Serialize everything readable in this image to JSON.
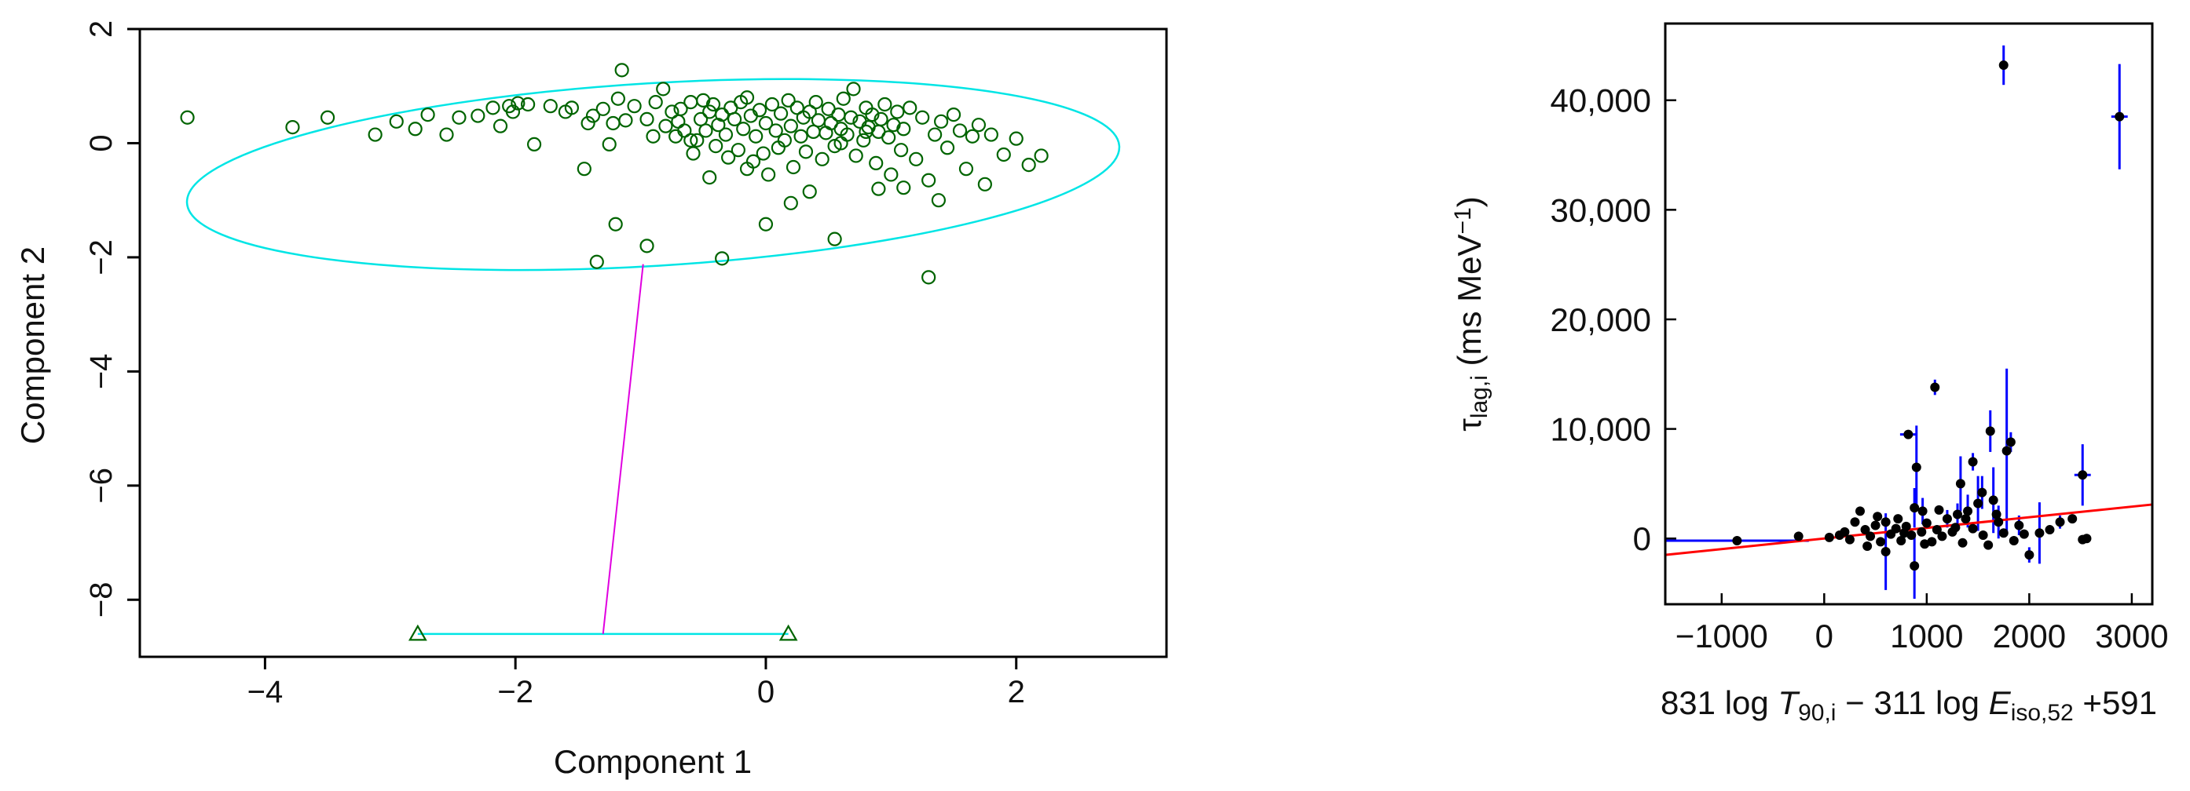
{
  "chart_data": [
    {
      "type": "scatter",
      "title": "",
      "xlabel": "Component 1",
      "ylabel": "Component 2",
      "xlim": [
        -5.0,
        3.2
      ],
      "ylim": [
        -9.0,
        2.0
      ],
      "xticks": [
        -4,
        -2,
        0,
        2
      ],
      "yticks": [
        -8,
        -6,
        -4,
        -2,
        0,
        2
      ],
      "xtick_labels": [
        "−4",
        "−2",
        "0",
        "2"
      ],
      "ytick_labels": [
        "−8",
        "−6",
        "−4",
        "−2",
        "0",
        "2"
      ],
      "grid": false,
      "colors": {
        "points": "#006400",
        "ellipse": "#00e5e5",
        "connector": "#e000e0"
      },
      "points": [
        [
          -4.62,
          0.45
        ],
        [
          -3.78,
          0.28
        ],
        [
          -3.5,
          0.45
        ],
        [
          -3.12,
          0.15
        ],
        [
          -2.95,
          0.38
        ],
        [
          -2.8,
          0.25
        ],
        [
          -2.7,
          0.5
        ],
        [
          -2.55,
          0.15
        ],
        [
          -2.45,
          0.45
        ],
        [
          -2.3,
          0.48
        ],
        [
          -2.18,
          0.62
        ],
        [
          -2.12,
          0.3
        ],
        [
          -2.05,
          0.65
        ],
        [
          -2.02,
          0.55
        ],
        [
          -1.98,
          0.7
        ],
        [
          -1.9,
          0.68
        ],
        [
          -1.85,
          -0.02
        ],
        [
          -1.72,
          0.65
        ],
        [
          -1.6,
          0.55
        ],
        [
          -1.55,
          0.62
        ],
        [
          -1.45,
          -0.45
        ],
        [
          -1.42,
          0.35
        ],
        [
          -1.38,
          0.48
        ],
        [
          -1.3,
          0.6
        ],
        [
          -1.25,
          -0.02
        ],
        [
          -1.22,
          0.35
        ],
        [
          -1.18,
          0.78
        ],
        [
          -1.15,
          1.28
        ],
        [
          -1.12,
          0.4
        ],
        [
          -1.05,
          0.65
        ],
        [
          -0.95,
          0.42
        ],
        [
          -0.88,
          0.72
        ],
        [
          -0.82,
          0.95
        ],
        [
          -0.8,
          0.3
        ],
        [
          -0.75,
          0.55
        ],
        [
          -0.72,
          0.12
        ],
        [
          -0.7,
          0.38
        ],
        [
          -0.68,
          0.6
        ],
        [
          -0.65,
          0.22
        ],
        [
          -0.6,
          0.72
        ],
        [
          -0.58,
          -0.18
        ],
        [
          -0.55,
          0.05
        ],
        [
          -0.52,
          0.42
        ],
        [
          -0.5,
          0.75
        ],
        [
          -0.48,
          0.22
        ],
        [
          -0.45,
          0.55
        ],
        [
          -0.42,
          0.68
        ],
        [
          -0.4,
          -0.05
        ],
        [
          -0.38,
          0.32
        ],
        [
          -0.35,
          0.5
        ],
        [
          -0.32,
          0.15
        ],
        [
          -0.3,
          -0.25
        ],
        [
          -0.28,
          0.62
        ],
        [
          -0.25,
          0.42
        ],
        [
          -0.22,
          -0.12
        ],
        [
          -0.2,
          0.72
        ],
        [
          -0.18,
          0.25
        ],
        [
          -0.15,
          0.8
        ],
        [
          -0.12,
          0.48
        ],
        [
          -0.1,
          -0.32
        ],
        [
          -0.08,
          0.12
        ],
        [
          -0.05,
          0.58
        ],
        [
          -0.02,
          -0.18
        ],
        [
          0.0,
          0.35
        ],
        [
          0.02,
          -0.55
        ],
        [
          0.05,
          0.68
        ],
        [
          0.08,
          0.22
        ],
        [
          0.1,
          -0.08
        ],
        [
          0.12,
          0.52
        ],
        [
          0.15,
          0.05
        ],
        [
          0.18,
          0.75
        ],
        [
          0.2,
          0.3
        ],
        [
          0.22,
          -0.42
        ],
        [
          0.25,
          0.62
        ],
        [
          0.28,
          0.12
        ],
        [
          0.3,
          0.45
        ],
        [
          0.32,
          -0.15
        ],
        [
          0.35,
          0.55
        ],
        [
          0.38,
          0.2
        ],
        [
          0.4,
          0.72
        ],
        [
          0.42,
          0.4
        ],
        [
          0.45,
          -0.28
        ],
        [
          0.48,
          0.18
        ],
        [
          0.5,
          0.6
        ],
        [
          0.52,
          0.35
        ],
        [
          0.55,
          -0.05
        ],
        [
          0.58,
          0.5
        ],
        [
          0.6,
          0.25
        ],
        [
          0.62,
          0.78
        ],
        [
          0.65,
          0.15
        ],
        [
          0.68,
          0.45
        ],
        [
          0.7,
          0.95
        ],
        [
          0.72,
          -0.22
        ],
        [
          0.75,
          0.38
        ],
        [
          0.78,
          0.05
        ],
        [
          0.8,
          0.62
        ],
        [
          0.82,
          0.28
        ],
        [
          0.85,
          0.5
        ],
        [
          0.88,
          -0.35
        ],
        [
          0.9,
          0.2
        ],
        [
          0.92,
          0.42
        ],
        [
          0.95,
          0.68
        ],
        [
          0.98,
          0.1
        ],
        [
          1.0,
          -0.55
        ],
        [
          1.02,
          0.32
        ],
        [
          1.05,
          0.55
        ],
        [
          1.08,
          -0.12
        ],
        [
          1.1,
          0.25
        ],
        [
          1.15,
          0.62
        ],
        [
          1.2,
          -0.28
        ],
        [
          1.25,
          0.45
        ],
        [
          1.3,
          -0.65
        ],
        [
          1.35,
          0.15
        ],
        [
          1.4,
          0.38
        ],
        [
          1.45,
          -0.08
        ],
        [
          1.5,
          0.5
        ],
        [
          1.55,
          0.22
        ],
        [
          1.6,
          -0.45
        ],
        [
          1.65,
          0.12
        ],
        [
          1.7,
          0.32
        ],
        [
          1.75,
          -0.72
        ],
        [
          1.8,
          0.15
        ],
        [
          1.9,
          -0.2
        ],
        [
          2.0,
          0.08
        ],
        [
          2.1,
          -0.38
        ],
        [
          2.2,
          -0.22
        ],
        [
          -1.35,
          -2.08
        ],
        [
          -1.2,
          -1.42
        ],
        [
          -0.95,
          -1.8
        ],
        [
          -0.35,
          -2.02
        ],
        [
          0.55,
          -1.68
        ],
        [
          1.3,
          -2.35
        ],
        [
          0.0,
          -1.42
        ],
        [
          0.8,
          0.2
        ],
        [
          -0.6,
          0.05
        ],
        [
          0.35,
          -0.85
        ],
        [
          -0.15,
          -0.45
        ],
        [
          0.9,
          -0.8
        ],
        [
          1.1,
          -0.78
        ],
        [
          0.6,
          0.0
        ],
        [
          -0.9,
          0.12
        ],
        [
          1.38,
          -1.0
        ],
        [
          -0.45,
          -0.6
        ],
        [
          0.2,
          -1.05
        ]
      ],
      "extra_points": [
        [
          -2.78,
          -8.6
        ],
        [
          0.18,
          -8.6
        ]
      ],
      "ellipse": {
        "cx": -0.9,
        "cy": -0.55,
        "rx": 3.73,
        "ry": 1.6,
        "rotate_deg": -3.5
      },
      "bottom_segment": [
        [
          -2.78,
          -8.6
        ],
        [
          0.18,
          -8.6
        ]
      ],
      "connector": [
        [
          -0.98,
          -2.12
        ],
        [
          -1.3,
          -8.6
        ]
      ]
    },
    {
      "type": "scatter",
      "title": "",
      "xlabel_parts": [
        "831 log ",
        "T",
        "90,i",
        " − 311 log ",
        "E",
        "iso,52",
        " +591"
      ],
      "ylabel_parts": [
        "τ",
        "lag,i",
        " (ms MeV",
        "−1",
        ")"
      ],
      "xlim": [
        -1550,
        3200
      ],
      "ylim": [
        -6000,
        47000
      ],
      "xticks": [
        -1000,
        0,
        1000,
        2000,
        3000
      ],
      "yticks": [
        0,
        10000,
        20000,
        30000,
        40000
      ],
      "xtick_labels": [
        "−1000",
        "0",
        "1000",
        "2000",
        "3000"
      ],
      "ytick_labels": [
        "0",
        "10,000",
        "20,000",
        "30,000",
        "40,000"
      ],
      "grid": false,
      "colors": {
        "points": "#000000",
        "errorbars": "#0000ff",
        "fit": "#ff0000"
      },
      "fit_line": {
        "x": [
          -1550,
          3200
        ],
        "y": [
          -1500,
          3100
        ]
      },
      "points": [
        {
          "x": -850,
          "y": -200,
          "xerr": 700,
          "yerr": 0
        },
        {
          "x": 1750,
          "y": 43200,
          "xerr": 0,
          "yerr": 1800
        },
        {
          "x": 2880,
          "y": 38500,
          "xerr": 80,
          "yerr": 4800
        },
        {
          "x": 1080,
          "y": 13800,
          "xerr": 0,
          "yerr": 700
        },
        {
          "x": 820,
          "y": 9500,
          "xerr": 80,
          "yerr": 0
        },
        {
          "x": 900,
          "y": 6500,
          "xerr": 0,
          "yerr": 3800
        },
        {
          "x": 1620,
          "y": 9800,
          "xerr": 0,
          "yerr": 1900
        },
        {
          "x": 1820,
          "y": 8800,
          "xerr": 0,
          "yerr": 900
        },
        {
          "x": 1780,
          "y": 8000,
          "xerr": 0,
          "yerr": 7500
        },
        {
          "x": 2520,
          "y": 5800,
          "xerr": 80,
          "yerr": 2800
        },
        {
          "x": 1450,
          "y": 7000,
          "xerr": 0,
          "yerr": 800
        },
        {
          "x": 1330,
          "y": 5000,
          "xerr": 0,
          "yerr": 2500
        },
        {
          "x": 1540,
          "y": 4200,
          "xerr": 0,
          "yerr": 1500
        },
        {
          "x": 1650,
          "y": 3500,
          "xerr": 0,
          "yerr": 3000
        },
        {
          "x": 880,
          "y": 2800,
          "xerr": 0,
          "yerr": 1800
        },
        {
          "x": 960,
          "y": 2500,
          "xerr": 0,
          "yerr": 1200
        },
        {
          "x": 1200,
          "y": 1800,
          "xerr": 0,
          "yerr": 800
        },
        {
          "x": 1300,
          "y": 2200,
          "xerr": 0,
          "yerr": 1000
        },
        {
          "x": 1400,
          "y": 2500,
          "xerr": 0,
          "yerr": 1500
        },
        {
          "x": 1500,
          "y": 3200,
          "xerr": 0,
          "yerr": 2500
        },
        {
          "x": 1700,
          "y": 1500,
          "xerr": 0,
          "yerr": 1500
        },
        {
          "x": 1900,
          "y": 1200,
          "xerr": 0,
          "yerr": 900
        },
        {
          "x": 2000,
          "y": -1500,
          "xerr": 0,
          "yerr": 700
        },
        {
          "x": 2100,
          "y": 500,
          "xerr": 0,
          "yerr": 2800
        },
        {
          "x": 2300,
          "y": 1500,
          "xerr": 0,
          "yerr": 600
        },
        {
          "x": 2420,
          "y": 1800,
          "xerr": 0,
          "yerr": 0
        },
        {
          "x": 2520,
          "y": -100,
          "xerr": 0,
          "yerr": 0
        },
        {
          "x": 2560,
          "y": 0,
          "xerr": 0,
          "yerr": 0
        },
        {
          "x": 600,
          "y": -1200,
          "xerr": 0,
          "yerr": 3500
        },
        {
          "x": 880,
          "y": -2500,
          "xerr": 0,
          "yerr": 3000
        },
        {
          "x": -250,
          "y": 200,
          "xerr": 0,
          "yerr": 0
        },
        {
          "x": 50,
          "y": 100,
          "xerr": 0,
          "yerr": 0
        },
        {
          "x": 150,
          "y": 300,
          "xerr": 0,
          "yerr": 0
        },
        {
          "x": 250,
          "y": -100,
          "xerr": 0,
          "yerr": 0
        },
        {
          "x": 300,
          "y": 1500,
          "xerr": 0,
          "yerr": 0
        },
        {
          "x": 350,
          "y": 2500,
          "xerr": 0,
          "yerr": 0
        },
        {
          "x": 400,
          "y": 800,
          "xerr": 0,
          "yerr": 0
        },
        {
          "x": 450,
          "y": 200,
          "xerr": 0,
          "yerr": 0
        },
        {
          "x": 500,
          "y": 1200,
          "xerr": 0,
          "yerr": 0
        },
        {
          "x": 550,
          "y": -300,
          "xerr": 0,
          "yerr": 0
        },
        {
          "x": 600,
          "y": 1500,
          "xerr": 0,
          "yerr": 0
        },
        {
          "x": 650,
          "y": 400,
          "xerr": 0,
          "yerr": 0
        },
        {
          "x": 700,
          "y": 900,
          "xerr": 0,
          "yerr": 0
        },
        {
          "x": 750,
          "y": -200,
          "xerr": 0,
          "yerr": 0
        },
        {
          "x": 800,
          "y": 1100,
          "xerr": 0,
          "yerr": 0
        },
        {
          "x": 850,
          "y": 300,
          "xerr": 0,
          "yerr": 0
        },
        {
          "x": 950,
          "y": 600,
          "xerr": 0,
          "yerr": 0
        },
        {
          "x": 1000,
          "y": 1400,
          "xerr": 0,
          "yerr": 0
        },
        {
          "x": 1050,
          "y": -300,
          "xerr": 0,
          "yerr": 0
        },
        {
          "x": 1100,
          "y": 800,
          "xerr": 0,
          "yerr": 0
        },
        {
          "x": 1150,
          "y": 200,
          "xerr": 0,
          "yerr": 0
        },
        {
          "x": 1250,
          "y": 600,
          "xerr": 0,
          "yerr": 0
        },
        {
          "x": 1350,
          "y": -400,
          "xerr": 0,
          "yerr": 0
        },
        {
          "x": 1450,
          "y": 900,
          "xerr": 0,
          "yerr": 0
        },
        {
          "x": 1550,
          "y": 300,
          "xerr": 0,
          "yerr": 0
        },
        {
          "x": 1600,
          "y": -600,
          "xerr": 0,
          "yerr": 0
        },
        {
          "x": 1750,
          "y": 500,
          "xerr": 0,
          "yerr": 0
        },
        {
          "x": 1850,
          "y": -200,
          "xerr": 0,
          "yerr": 0
        },
        {
          "x": 1950,
          "y": 400,
          "xerr": 0,
          "yerr": 0
        },
        {
          "x": 2200,
          "y": 800,
          "xerr": 0,
          "yerr": 0
        },
        {
          "x": 200,
          "y": 600,
          "xerr": 0,
          "yerr": 0
        },
        {
          "x": 520,
          "y": 2000,
          "xerr": 0,
          "yerr": 0
        },
        {
          "x": 720,
          "y": 1800,
          "xerr": 0,
          "yerr": 0
        },
        {
          "x": 1120,
          "y": 2600,
          "xerr": 0,
          "yerr": 0
        },
        {
          "x": 1380,
          "y": 1800,
          "xerr": 0,
          "yerr": 0
        },
        {
          "x": 980,
          "y": -500,
          "xerr": 0,
          "yerr": 0
        },
        {
          "x": 420,
          "y": -700,
          "xerr": 0,
          "yerr": 0
        },
        {
          "x": 1680,
          "y": 2200,
          "xerr": 0,
          "yerr": 0
        },
        {
          "x": 780,
          "y": 500,
          "xerr": 0,
          "yerr": 0
        },
        {
          "x": 1280,
          "y": 1000,
          "xerr": 0,
          "yerr": 0
        }
      ]
    }
  ]
}
